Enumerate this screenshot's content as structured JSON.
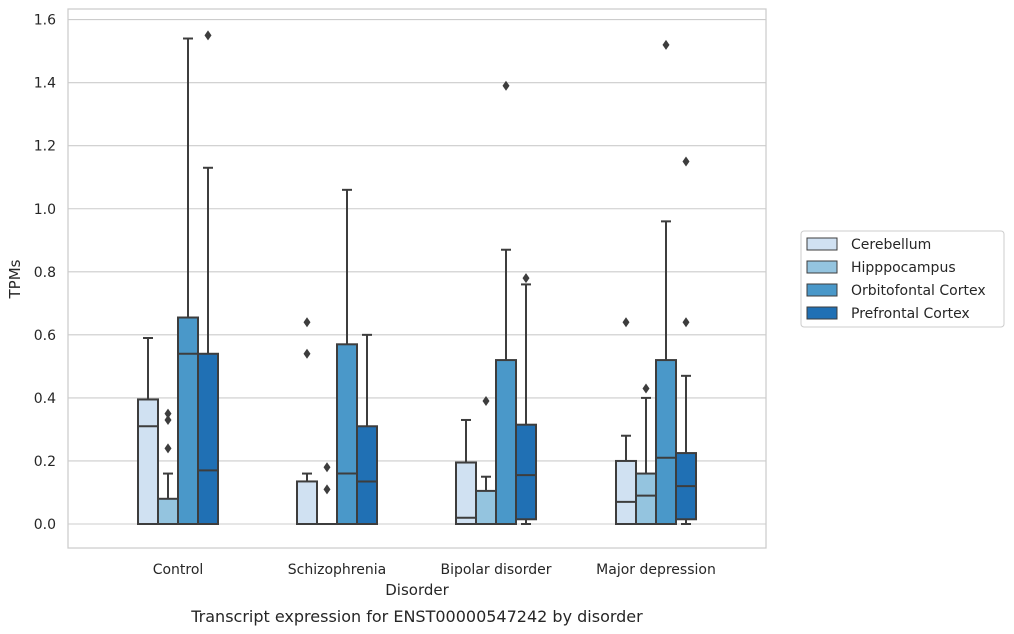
{
  "chart_data": {
    "type": "box",
    "title": "Transcript expression for ENST00000547242 by disorder",
    "xlabel": "Disorder",
    "ylabel": "TPMs",
    "ylim": [
      -0.08,
      1.62
    ],
    "yticks": [
      "0.0",
      "0.2",
      "0.4",
      "0.6",
      "0.8",
      "1.0",
      "1.2",
      "1.4",
      "1.6"
    ],
    "ytick_values": [
      0.0,
      0.2,
      0.4,
      0.6,
      0.8,
      1.0,
      1.2,
      1.4,
      1.6
    ],
    "grid": true,
    "legend_position": "right",
    "categories": [
      "Control",
      "Schizophrenia",
      "Bipolar disorder",
      "Major depression"
    ],
    "series": [
      {
        "name": "Cerebellum",
        "color": "#d0e1f2",
        "boxes": [
          {
            "whislo": 0.0,
            "q1": 0.0,
            "med": 0.31,
            "q3": 0.395,
            "whishi": 0.59,
            "fliers": []
          },
          {
            "whislo": 0.0,
            "q1": 0.0,
            "med": 0.0,
            "q3": 0.135,
            "whishi": 0.16,
            "fliers": [
              0.54,
              0.64
            ]
          },
          {
            "whislo": 0.0,
            "q1": 0.0,
            "med": 0.02,
            "q3": 0.195,
            "whishi": 0.33,
            "fliers": []
          },
          {
            "whislo": 0.0,
            "q1": 0.0,
            "med": 0.07,
            "q3": 0.2,
            "whishi": 0.28,
            "fliers": [
              0.64
            ]
          }
        ]
      },
      {
        "name": "Hipppocampus",
        "color": "#94c4df",
        "boxes": [
          {
            "whislo": 0.0,
            "q1": 0.0,
            "med": 0.0,
            "q3": 0.08,
            "whishi": 0.16,
            "fliers": [
              0.24,
              0.33,
              0.35
            ]
          },
          {
            "whislo": 0.0,
            "q1": 0.0,
            "med": 0.0,
            "q3": 0.0,
            "whishi": 0.0,
            "fliers": [
              0.11,
              0.18
            ]
          },
          {
            "whislo": 0.0,
            "q1": 0.0,
            "med": 0.0,
            "q3": 0.105,
            "whishi": 0.15,
            "fliers": [
              0.39
            ]
          },
          {
            "whislo": 0.0,
            "q1": 0.0,
            "med": 0.09,
            "q3": 0.16,
            "whishi": 0.4,
            "fliers": [
              0.43
            ]
          }
        ]
      },
      {
        "name": "Orbitofontal Cortex",
        "color": "#4a98c9",
        "boxes": [
          {
            "whislo": 0.0,
            "q1": 0.0,
            "med": 0.54,
            "q3": 0.655,
            "whishi": 1.54,
            "fliers": []
          },
          {
            "whislo": 0.0,
            "q1": 0.0,
            "med": 0.16,
            "q3": 0.57,
            "whishi": 1.06,
            "fliers": []
          },
          {
            "whislo": 0.0,
            "q1": 0.0,
            "med": 0.0,
            "q3": 0.52,
            "whishi": 0.87,
            "fliers": [
              1.39
            ]
          },
          {
            "whislo": 0.0,
            "q1": 0.0,
            "med": 0.21,
            "q3": 0.52,
            "whishi": 0.96,
            "fliers": [
              1.52
            ]
          }
        ]
      },
      {
        "name": "Prefrontal Cortex",
        "color": "#2070b4",
        "boxes": [
          {
            "whislo": 0.0,
            "q1": 0.0,
            "med": 0.17,
            "q3": 0.54,
            "whishi": 1.13,
            "fliers": [
              1.55
            ]
          },
          {
            "whislo": 0.0,
            "q1": 0.0,
            "med": 0.135,
            "q3": 0.31,
            "whishi": 0.6,
            "fliers": []
          },
          {
            "whislo": 0.0,
            "q1": 0.015,
            "med": 0.155,
            "q3": 0.315,
            "whishi": 0.76,
            "fliers": [
              0.78
            ]
          },
          {
            "whislo": 0.0,
            "q1": 0.015,
            "med": 0.12,
            "q3": 0.225,
            "whishi": 0.47,
            "fliers": [
              0.64,
              1.15
            ]
          }
        ]
      }
    ]
  }
}
